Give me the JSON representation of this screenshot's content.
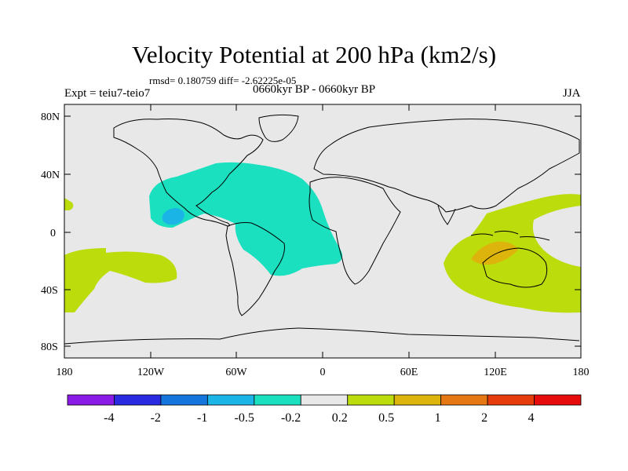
{
  "title": "Velocity Potential at 200 hPa (km2/s)",
  "stats": "rmsd= 0.180759 diff= -2.62225e-05",
  "experiment": "Expt = teiu7-teio7",
  "period": "0660kyr BP - 0660kyr BP",
  "season": "JJA",
  "lat_ticks": [
    "80N",
    "40N",
    "0",
    "40S",
    "80S"
  ],
  "lon_ticks": [
    "180",
    "120W",
    "60W",
    "0",
    "60E",
    "120E",
    "180"
  ],
  "colorbar": {
    "colors": [
      "#8a1ae6",
      "#2a2ae0",
      "#1475dc",
      "#1ab4e6",
      "#1ae0c0",
      "#e8e8e8",
      "#bcdc0c",
      "#dcb40c",
      "#e67814",
      "#e63c0c",
      "#e60c0c"
    ],
    "labels": [
      "-4",
      "-2",
      "-1",
      "-0.5",
      "-0.2",
      "0.2",
      "0.5",
      "1",
      "2",
      "4"
    ]
  },
  "map_colors": {
    "background": "#e8e8e8",
    "coast": "#000000",
    "negative_weak": "#1ae0c0",
    "negative_mid": "#1ab4e6",
    "positive_weak": "#bcdc0c",
    "positive_mid": "#dcb40c"
  }
}
